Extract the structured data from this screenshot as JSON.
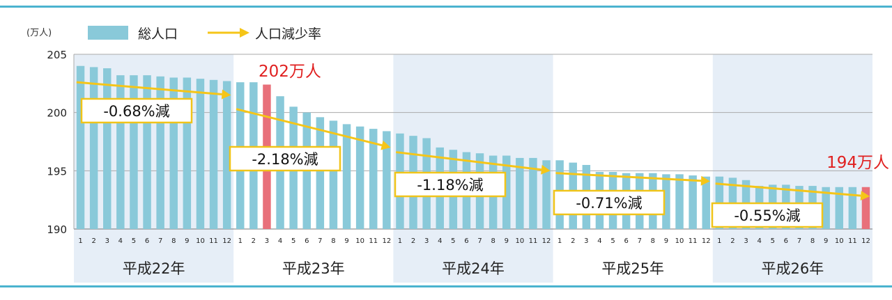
{
  "chart_data": {
    "type": "bar",
    "unit_label": "(万人)",
    "y_ticks": [
      190,
      195,
      200,
      205
    ],
    "ylim": [
      190,
      205
    ],
    "grid": true,
    "legend": {
      "placement": "top-left",
      "bar_label": "総人口",
      "line_label": "人口減少率"
    },
    "colors": {
      "bar": "#89c9d9",
      "highlight_bar": "#e8707a",
      "arrow": "#f5c518",
      "band": "#e6eef7",
      "highlight_text": "#e02020",
      "box_border": "#f0c419"
    },
    "years": [
      {
        "label": "平成22年",
        "months": [
          "1",
          "2",
          "3",
          "4",
          "5",
          "6",
          "7",
          "8",
          "9",
          "10",
          "11",
          "12"
        ]
      },
      {
        "label": "平成23年",
        "months": [
          "1",
          "2",
          "3",
          "4",
          "5",
          "6",
          "7",
          "8",
          "9",
          "10",
          "11",
          "12"
        ]
      },
      {
        "label": "平成24年",
        "months": [
          "1",
          "2",
          "3",
          "4",
          "5",
          "6",
          "7",
          "8",
          "9",
          "10",
          "11",
          "12"
        ]
      },
      {
        "label": "平成25年",
        "months": [
          "1",
          "2",
          "3",
          "4",
          "5",
          "6",
          "7",
          "8",
          "9",
          "10",
          "11",
          "12"
        ]
      },
      {
        "label": "平成26年",
        "months": [
          "1",
          "2",
          "3",
          "4",
          "5",
          "6",
          "7",
          "8",
          "9",
          "10",
          "11",
          "12"
        ]
      }
    ],
    "series": [
      {
        "name": "総人口",
        "values": [
          204.0,
          203.9,
          203.8,
          203.2,
          203.2,
          203.2,
          203.1,
          203.0,
          203.0,
          202.9,
          202.8,
          202.7,
          202.6,
          202.6,
          202.4,
          201.4,
          200.5,
          200.0,
          199.6,
          199.3,
          199.0,
          198.8,
          198.6,
          198.4,
          198.2,
          198.0,
          197.8,
          197.0,
          196.8,
          196.6,
          196.5,
          196.3,
          196.3,
          196.1,
          196.1,
          195.9,
          195.9,
          195.7,
          195.5,
          194.9,
          194.9,
          194.8,
          194.8,
          194.8,
          194.7,
          194.7,
          194.6,
          194.5,
          194.5,
          194.4,
          194.2,
          193.7,
          193.8,
          193.8,
          193.7,
          193.7,
          193.6,
          193.6,
          193.6,
          193.6
        ]
      }
    ],
    "highlights": [
      {
        "index": 14,
        "label": "202万人"
      },
      {
        "index": 59,
        "label": "194万人"
      }
    ],
    "rate_annotations": [
      {
        "label": "-0.68%減",
        "from_index": 0,
        "to_index": 11,
        "from_value": 202.6,
        "to_value": 201.5
      },
      {
        "label": "-2.18%減",
        "from_index": 12,
        "to_index": 23,
        "from_value": 200.3,
        "to_value": 197.0
      },
      {
        "label": "-1.18%減",
        "from_index": 24,
        "to_index": 35,
        "from_value": 196.6,
        "to_value": 195.0
      },
      {
        "label": "-0.71%減",
        "from_index": 36,
        "to_index": 47,
        "from_value": 194.8,
        "to_value": 194.1
      },
      {
        "label": "-0.55%減",
        "from_index": 48,
        "to_index": 59,
        "from_value": 193.9,
        "to_value": 192.8
      }
    ]
  }
}
